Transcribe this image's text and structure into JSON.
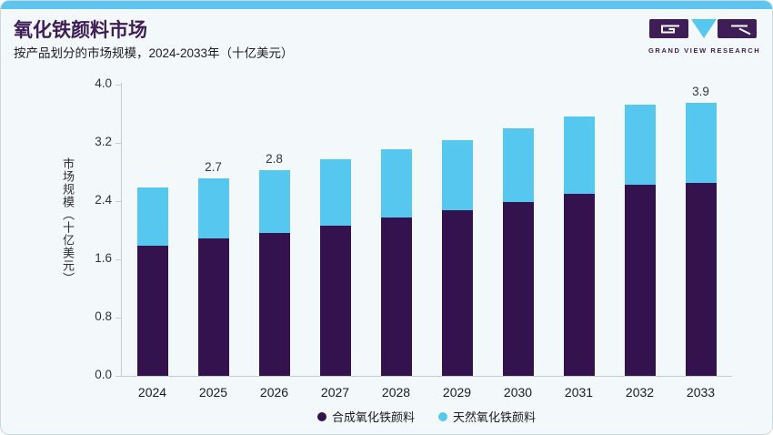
{
  "header": {
    "title": "氧化铁颜料市场",
    "subtitle": "按产品划分的市场规模，2024-2033年（十亿美元）"
  },
  "logo": {
    "text": "GRAND VIEW RESEARCH",
    "purple": "#3f1d57",
    "blue": "#56c8f0"
  },
  "chart_data": {
    "type": "bar",
    "stacked": true,
    "title": "氧化铁颜料市场",
    "subtitle": "按产品划分的市场规模，2024-2033年（十亿美元）",
    "ylabel": "市场规模（十亿美元）",
    "xlabel": "",
    "categories": [
      "2024",
      "2025",
      "2026",
      "2027",
      "2028",
      "2029",
      "2030",
      "2031",
      "2032",
      "2033"
    ],
    "series": [
      {
        "name": "合成氧化铁颜料",
        "color": "#33124e",
        "values": [
          1.79,
          1.89,
          1.96,
          2.06,
          2.17,
          2.27,
          2.39,
          2.5,
          2.62,
          2.76
        ]
      },
      {
        "name": "天然氧化铁颜料",
        "color": "#56c8f0",
        "values": [
          0.8,
          0.82,
          0.87,
          0.92,
          0.94,
          0.97,
          1.01,
          1.06,
          1.1,
          1.14
        ]
      }
    ],
    "totals": [
      2.59,
      2.71,
      2.83,
      2.98,
      3.11,
      3.24,
      3.4,
      3.56,
      3.72,
      3.9
    ],
    "annotations": [
      "",
      "2.7",
      "2.8",
      "",
      "",
      "",
      "",
      "",
      "",
      "3.9"
    ],
    "yticks": [
      "0.0",
      "0.8",
      "1.6",
      "2.4",
      "3.2",
      "4.0"
    ],
    "ylim": [
      0,
      4.0
    ],
    "grid": false,
    "legend_position": "bottom"
  },
  "legend": [
    {
      "label": "合成氧化铁颜料",
      "color": "#33124e"
    },
    {
      "label": "天然氧化铁颜料",
      "color": "#56c8f0"
    }
  ],
  "colors": {
    "card_background": "#f3f8fb",
    "card_border": "#ccd7dd",
    "top_strip": "#5dc5ef",
    "title_text": "#3f1d57",
    "axis_line": "#c3ccd3",
    "bar_synthetic": "#33124e",
    "bar_natural": "#56c8f0"
  }
}
